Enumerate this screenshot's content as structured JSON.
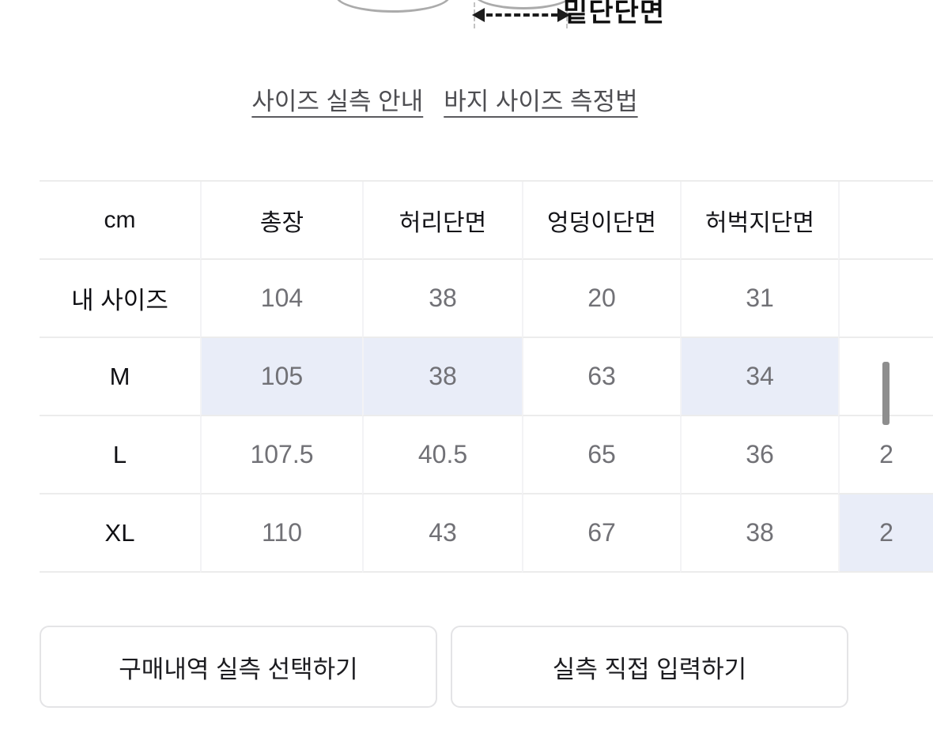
{
  "diagram": {
    "label": "밑단단면",
    "arrow_icon": "double-headed-dashed-arrow"
  },
  "links": {
    "size_guide": "사이즈 실측 안내",
    "measure_guide": "바지 사이즈 측정법"
  },
  "table": {
    "unit_header": "cm",
    "columns": [
      "총장",
      "허리단면",
      "엉덩이단면",
      "허벅지단면",
      ""
    ],
    "rows": [
      {
        "label": "내 사이즈",
        "values": [
          "104",
          "38",
          "20",
          "31",
          ""
        ],
        "highlights": [
          false,
          false,
          false,
          false,
          false
        ]
      },
      {
        "label": "M",
        "values": [
          "105",
          "38",
          "63",
          "34",
          ""
        ],
        "highlights": [
          true,
          true,
          false,
          true,
          false
        ]
      },
      {
        "label": "L",
        "values": [
          "107.5",
          "40.5",
          "65",
          "36",
          "2"
        ],
        "highlights": [
          false,
          false,
          false,
          false,
          false
        ]
      },
      {
        "label": "XL",
        "values": [
          "110",
          "43",
          "67",
          "38",
          "2"
        ],
        "highlights": [
          false,
          false,
          false,
          false,
          true
        ]
      }
    ]
  },
  "buttons": {
    "select_from_purchases": "구매내역 실측 선택하기",
    "enter_manually": "실측 직접 입력하기"
  },
  "colors": {
    "highlight_cell": "#e9edf8",
    "value_text": "#717176",
    "link_text": "#4e4e52",
    "scrollbar_thumb": "#8e8e8e",
    "table_border": "#ececec"
  }
}
